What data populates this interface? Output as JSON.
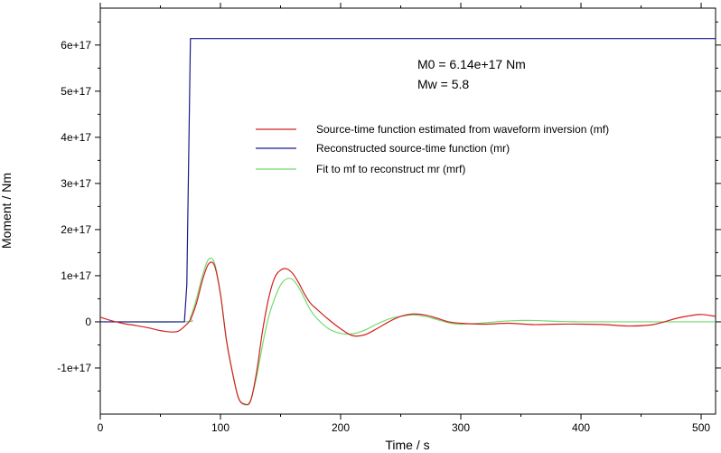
{
  "chart_data": {
    "type": "line",
    "xlabel": "Time / s",
    "ylabel": "Moment / Nm",
    "xlim": [
      0,
      512
    ],
    "ylim": [
      -2e+17,
      6.8e+17
    ],
    "x_ticks": [
      0,
      100,
      200,
      300,
      400,
      500
    ],
    "x_tick_labels": [
      "0",
      "100",
      "200",
      "300",
      "400",
      "500"
    ],
    "y_ticks": [
      -1e+17,
      0,
      1e+17,
      2e+17,
      3e+17,
      4e+17,
      5e+17,
      6e+17
    ],
    "y_tick_labels": [
      "-1e+17",
      "0",
      "1e+17",
      "2e+17",
      "3e+17",
      "4e+17",
      "5e+17",
      "6e+17"
    ],
    "grid": false,
    "legend_position": "center-right",
    "annotations": [
      "M0 = 6.14e+17 Nm",
      "Mw = 5.8"
    ],
    "series": [
      {
        "name": "Source-time function estimated from waveform inversion (mf)",
        "color": "#d42020",
        "x": [
          0,
          10,
          20,
          30,
          40,
          50,
          55,
          60,
          65,
          70,
          75,
          80,
          85,
          90,
          95,
          100,
          105,
          110,
          115,
          120,
          125,
          130,
          135,
          140,
          145,
          150,
          155,
          160,
          165,
          170,
          175,
          180,
          190,
          200,
          210,
          220,
          230,
          240,
          250,
          260,
          270,
          280,
          290,
          300,
          320,
          340,
          360,
          380,
          400,
          420,
          440,
          460,
          480,
          490,
          500,
          512
        ],
        "y": [
          1e+16,
          2000000000000000.0,
          -4000000000000000.0,
          -8000000000000000.0,
          -1.3e+16,
          -1.9e+16,
          -2.1e+16,
          -2.2e+16,
          -2e+16,
          -1e+16,
          5000000000000000.0,
          4e+16,
          9e+16,
          1.25e+17,
          1.22e+17,
          6e+16,
          -4e+16,
          -1.1e+17,
          -1.65e+17,
          -1.78e+17,
          -1.72e+17,
          -1.1e+17,
          -2e+16,
          5e+16,
          9.5e+16,
          1.12e+17,
          1.15e+17,
          1.05e+17,
          8.5e+16,
          6e+16,
          4e+16,
          2.8e+16,
          5000000000000000.0,
          -1.5e+16,
          -3e+16,
          -2.8e+16,
          -1.5e+16,
          0.0,
          1.2e+16,
          1.7e+16,
          1.5e+16,
          8000000000000000.0,
          0.0,
          -3000000000000000.0,
          -5000000000000000.0,
          -3000000000000000.0,
          -6000000000000000.0,
          -5000000000000000.0,
          -5000000000000000.0,
          -6000000000000000.0,
          -9000000000000000.0,
          -6000000000000000.0,
          8000000000000000.0,
          1.3e+16,
          1.6e+16,
          1.2e+16
        ]
      },
      {
        "name": "Reconstructed source-time function (mr)",
        "color": "#1a1a8c",
        "x": [
          0,
          70,
          72,
          75,
          76,
          512
        ],
        "y": [
          0,
          0,
          8e+16,
          6.14e+17,
          6.14e+17,
          6.14e+17
        ]
      },
      {
        "name": "Fit to mf to reconstruct mr (mrf)",
        "color": "#6fdc6f",
        "x": [
          0,
          70,
          75,
          80,
          85,
          90,
          95,
          100,
          105,
          110,
          115,
          120,
          125,
          130,
          135,
          140,
          145,
          150,
          155,
          160,
          165,
          170,
          175,
          180,
          190,
          200,
          210,
          220,
          230,
          240,
          250,
          260,
          270,
          280,
          290,
          300,
          320,
          340,
          360,
          380,
          400,
          450,
          512
        ],
        "y": [
          0,
          0,
          1e+16,
          5e+16,
          1e+17,
          1.35e+17,
          1.28e+17,
          6e+16,
          -4e+16,
          -1.1e+17,
          -1.65e+17,
          -1.8e+17,
          -1.7e+17,
          -1.2e+17,
          -5e+16,
          1e+16,
          5e+16,
          8e+16,
          9.3e+16,
          9.2e+16,
          7.5e+16,
          5e+16,
          2.5e+16,
          8000000000000000.0,
          -1.5e+16,
          -2.5e+16,
          -2.6e+16,
          -1.8e+16,
          -5000000000000000.0,
          6000000000000000.0,
          1.2e+16,
          1.5e+16,
          1.2e+16,
          5000000000000000.0,
          -2000000000000000.0,
          -5000000000000000.0,
          -2000000000000000.0,
          2000000000000000.0,
          3000000000000000.0,
          1000000000000000.0,
          0.0,
          0.0,
          0.0
        ]
      }
    ]
  }
}
